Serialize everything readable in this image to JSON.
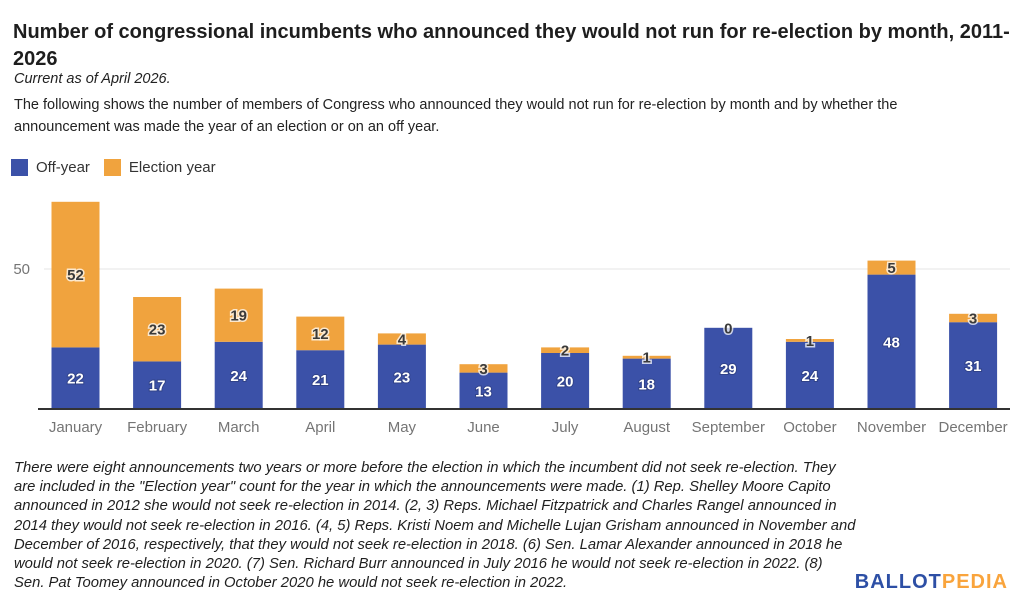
{
  "header": {
    "title": "Number of congressional incumbents who announced they would not run for re-election by month, 2011-2026",
    "current_as_of": "Current as of April 2026.",
    "description": "The following shows the number of members of Congress who announced they would not run for re-election by month and by whether the announcement was made the year of an election or on an off year."
  },
  "legend": [
    {
      "label": "Off-year",
      "color": "#3B51A8"
    },
    {
      "label": "Election year",
      "color": "#F0A33E"
    }
  ],
  "chart_data": {
    "type": "bar",
    "stacked": true,
    "title": "Number of congressional incumbents who announced they would not run for re-election by month, 2011-2026",
    "categories": [
      "January",
      "February",
      "March",
      "April",
      "May",
      "June",
      "July",
      "August",
      "September",
      "October",
      "November",
      "December"
    ],
    "series": [
      {
        "name": "Off-year",
        "color": "#3B51A8",
        "values": [
          22,
          17,
          24,
          21,
          23,
          13,
          20,
          18,
          29,
          24,
          48,
          31
        ]
      },
      {
        "name": "Election year",
        "color": "#F0A33E",
        "values": [
          52,
          23,
          19,
          12,
          4,
          3,
          2,
          1,
          0,
          1,
          5,
          3
        ]
      }
    ],
    "xlabel": "",
    "ylabel": "",
    "ylim": [
      0,
      75
    ],
    "yticks": [
      50
    ],
    "grid": "horizontal",
    "legend_position": "top-left",
    "value_labels": "inside-segments",
    "colors": {
      "grid": "#e4e4e4",
      "axis_line": "#333333",
      "tick_text": "#757575",
      "offyear_label": "#ffffff",
      "electionyear_label": "#3a3a3a"
    }
  },
  "footnote": "There were eight announcements two years or more before the election in which the incumbent did not seek re-election. They are included in the \"Election year\" count for the year in which the announcements were made. (1) Rep. Shelley Moore Capito announced in 2012 she would not seek re-election in 2014. (2, 3) Reps. Michael Fitzpatrick and Charles Rangel announced in 2014 they would not seek re-election in 2016. (4, 5) Reps. Kristi Noem and Michelle Lujan Grisham announced in November and December of 2016, respectively, that they would not seek re-election in 2018. (6) Sen. Lamar Alexander announced in 2018 he would not seek re-election in 2020. (7) Sen. Richard Burr announced in July 2016 he would not seek re-election in 2022. (8) Sen. Pat Toomey announced in October 2020 he would not seek re-election in 2022.",
  "branding": {
    "ballot": "BALLOT",
    "pedia": "PEDIA",
    "ballot_color": "#2D4FA5",
    "pedia_color": "#F9A43C"
  }
}
